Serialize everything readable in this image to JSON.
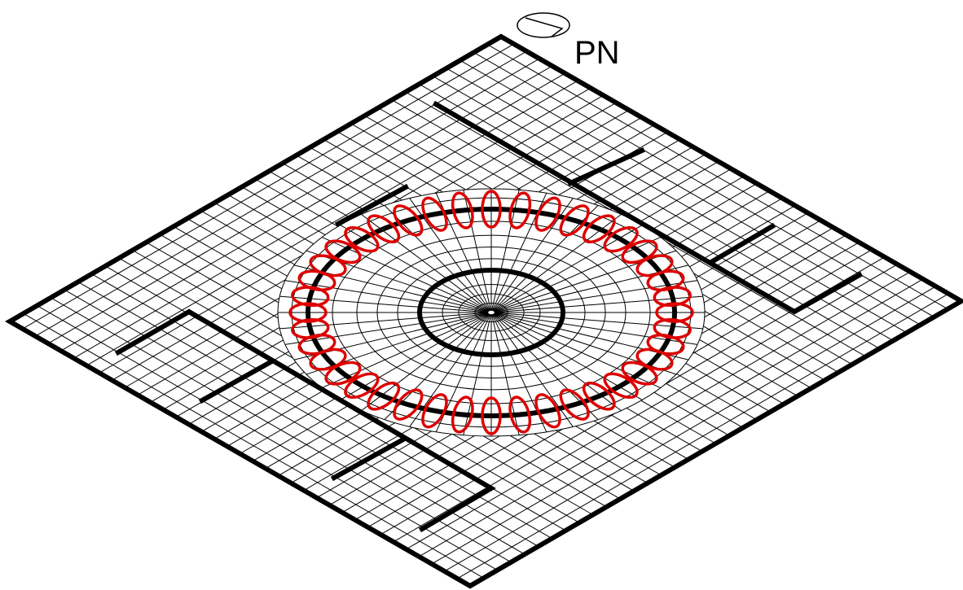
{
  "label": "PN"
}
